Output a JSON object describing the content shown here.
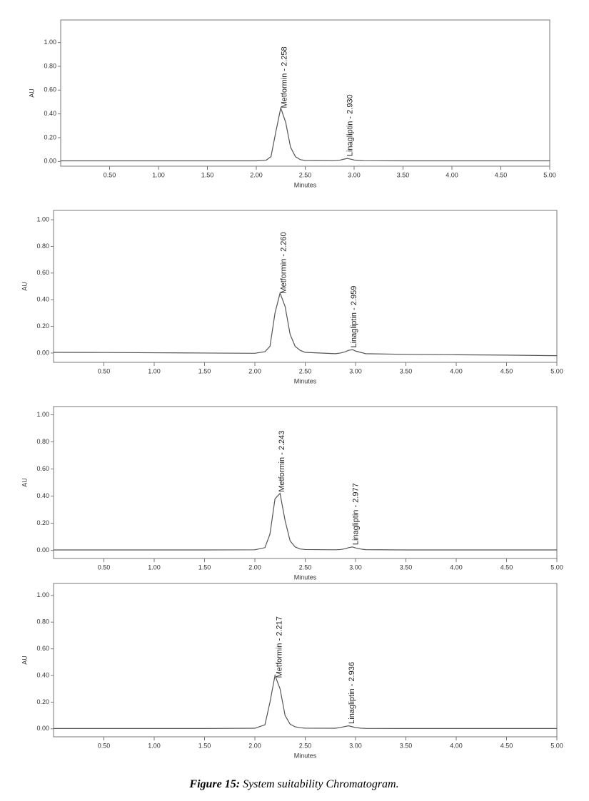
{
  "chart_data": [
    {
      "type": "line",
      "y_label": "AU",
      "x_label": "Minutes",
      "x": [
        0,
        0.5,
        1,
        1.5,
        2,
        2.1,
        2.15,
        2.2,
        2.25,
        2.3,
        2.35,
        2.4,
        2.45,
        2.5,
        2.8,
        2.85,
        2.9,
        2.93,
        2.97,
        3.0,
        3.05,
        3.1,
        3.5,
        4,
        4.5,
        5
      ],
      "series": [
        {
          "color": "#555555",
          "values": [
            0.005,
            0.005,
            0.005,
            0.005,
            0.005,
            0.01,
            0.04,
            0.25,
            0.45,
            0.33,
            0.12,
            0.04,
            0.015,
            0.008,
            0.006,
            0.01,
            0.02,
            0.025,
            0.018,
            0.012,
            0.008,
            0.006,
            0.005,
            0.005,
            0.005,
            0.005
          ]
        }
      ],
      "xlim": [
        0,
        5
      ],
      "ylim": [
        -0.04,
        1.19
      ],
      "xticks": [
        {
          "value": 0.5,
          "label": "0.50"
        },
        {
          "value": 1,
          "label": "1.00"
        },
        {
          "value": 1.5,
          "label": "1.50"
        },
        {
          "value": 2,
          "label": "2.00"
        },
        {
          "value": 2.5,
          "label": "2.50"
        },
        {
          "value": 3,
          "label": "3.00"
        },
        {
          "value": 3.5,
          "label": "3.50"
        },
        {
          "value": 4,
          "label": "4.00"
        },
        {
          "value": 4.5,
          "label": "4.50"
        },
        {
          "value": 5,
          "label": "5.00"
        }
      ],
      "yticks": [
        {
          "value": 0,
          "label": "0.00"
        },
        {
          "value": 0.2,
          "label": "0.20"
        },
        {
          "value": 0.4,
          "label": "0.40"
        },
        {
          "value": 0.6,
          "label": "0.60"
        },
        {
          "value": 0.8,
          "label": "0.80"
        },
        {
          "value": 1,
          "label": "1.00"
        }
      ],
      "annotations": [
        {
          "text": "Metformin - 2.258",
          "x": 2.258
        },
        {
          "text": "Linagliptin - 2.930",
          "x": 2.93
        }
      ]
    },
    {
      "type": "line",
      "y_label": "AU",
      "x_label": "Minutes",
      "x": [
        0,
        0.5,
        1,
        1.5,
        2,
        2.1,
        2.15,
        2.2,
        2.25,
        2.3,
        2.35,
        2.4,
        2.45,
        2.5,
        2.8,
        2.85,
        2.9,
        2.93,
        2.97,
        3.0,
        3.05,
        3.1,
        3.5,
        4,
        4.5,
        5
      ],
      "series": [
        {
          "color": "#555555",
          "values": [
            0.005,
            0.004,
            0.002,
            0,
            -0.002,
            0.01,
            0.05,
            0.3,
            0.45,
            0.35,
            0.14,
            0.05,
            0.02,
            0.005,
            -0.005,
            0.0,
            0.01,
            0.02,
            0.025,
            0.015,
            0.005,
            -0.005,
            -0.01,
            -0.013,
            -0.016,
            -0.02
          ]
        }
      ],
      "xlim": [
        0,
        5
      ],
      "ylim": [
        -0.07,
        1.07
      ],
      "xticks": [
        {
          "value": 0.5,
          "label": "0.50"
        },
        {
          "value": 1,
          "label": "1.00"
        },
        {
          "value": 1.5,
          "label": "1.50"
        },
        {
          "value": 2,
          "label": "2.00"
        },
        {
          "value": 2.5,
          "label": "2.50"
        },
        {
          "value": 3,
          "label": "3.00"
        },
        {
          "value": 3.5,
          "label": "3.50"
        },
        {
          "value": 4,
          "label": "4.00"
        },
        {
          "value": 4.5,
          "label": "4.50"
        },
        {
          "value": 5,
          "label": "5.00"
        }
      ],
      "yticks": [
        {
          "value": 0,
          "label": "0.00"
        },
        {
          "value": 0.2,
          "label": "0.20"
        },
        {
          "value": 0.4,
          "label": "0.40"
        },
        {
          "value": 0.6,
          "label": "0.60"
        },
        {
          "value": 0.8,
          "label": "0.80"
        },
        {
          "value": 1,
          "label": "1.00"
        }
      ],
      "annotations": [
        {
          "text": "Metformin - 2.260",
          "x": 2.26
        },
        {
          "text": "Linagliptin - 2.959",
          "x": 2.959
        }
      ]
    },
    {
      "type": "line",
      "y_label": "AU",
      "x_label": "Minutes",
      "x": [
        0,
        0.5,
        1,
        1.5,
        2,
        2.1,
        2.15,
        2.2,
        2.25,
        2.3,
        2.35,
        2.4,
        2.45,
        2.5,
        2.8,
        2.85,
        2.9,
        2.93,
        2.97,
        3.0,
        3.05,
        3.1,
        3.5,
        4,
        4.5,
        5
      ],
      "series": [
        {
          "color": "#555555",
          "values": [
            0.003,
            0.003,
            0.003,
            0.003,
            0.004,
            0.02,
            0.12,
            0.38,
            0.42,
            0.22,
            0.07,
            0.025,
            0.01,
            0.006,
            0.004,
            0.006,
            0.012,
            0.02,
            0.025,
            0.018,
            0.01,
            0.005,
            0.003,
            0.003,
            0.003,
            0.003
          ]
        }
      ],
      "xlim": [
        0,
        5
      ],
      "ylim": [
        -0.06,
        1.06
      ],
      "xticks": [
        {
          "value": 0.5,
          "label": "0.50"
        },
        {
          "value": 1,
          "label": "1.00"
        },
        {
          "value": 1.5,
          "label": "1.50"
        },
        {
          "value": 2,
          "label": "2.00"
        },
        {
          "value": 2.5,
          "label": "2.50"
        },
        {
          "value": 3,
          "label": "3.00"
        },
        {
          "value": 3.5,
          "label": "3.50"
        },
        {
          "value": 4,
          "label": "4.00"
        },
        {
          "value": 4.5,
          "label": "4.50"
        },
        {
          "value": 5,
          "label": "5.00"
        }
      ],
      "yticks": [
        {
          "value": 0,
          "label": "0.00"
        },
        {
          "value": 0.2,
          "label": "0.20"
        },
        {
          "value": 0.4,
          "label": "0.40"
        },
        {
          "value": 0.6,
          "label": "0.60"
        },
        {
          "value": 0.8,
          "label": "0.80"
        },
        {
          "value": 1,
          "label": "1.00"
        }
      ],
      "annotations": [
        {
          "text": "Metformin - 2.243",
          "x": 2.243
        },
        {
          "text": "Linagliptin - 2.977",
          "x": 2.977
        }
      ]
    },
    {
      "type": "line",
      "y_label": "AU",
      "x_label": "Minutes",
      "x": [
        0,
        0.5,
        1,
        1.5,
        2,
        2.1,
        2.15,
        2.2,
        2.25,
        2.3,
        2.35,
        2.4,
        2.45,
        2.5,
        2.8,
        2.85,
        2.9,
        2.93,
        2.97,
        3.0,
        3.05,
        3.1,
        3.5,
        4,
        4.5,
        5
      ],
      "series": [
        {
          "color": "#555555",
          "values": [
            0.002,
            0.002,
            0.002,
            0.002,
            0.004,
            0.03,
            0.2,
            0.4,
            0.3,
            0.1,
            0.035,
            0.015,
            0.008,
            0.005,
            0.004,
            0.01,
            0.018,
            0.022,
            0.015,
            0.01,
            0.005,
            0.003,
            0.002,
            0.002,
            0.002,
            0.002
          ]
        }
      ],
      "xlim": [
        0,
        5
      ],
      "ylim": [
        -0.06,
        1.09
      ],
      "xticks": [
        {
          "value": 0.5,
          "label": "0.50"
        },
        {
          "value": 1,
          "label": "1.00"
        },
        {
          "value": 1.5,
          "label": "1.50"
        },
        {
          "value": 2,
          "label": "2.00"
        },
        {
          "value": 2.5,
          "label": "2.50"
        },
        {
          "value": 3,
          "label": "3.00"
        },
        {
          "value": 3.5,
          "label": "3.50"
        },
        {
          "value": 4,
          "label": "4.00"
        },
        {
          "value": 4.5,
          "label": "4.50"
        },
        {
          "value": 5,
          "label": "5.00"
        }
      ],
      "yticks": [
        {
          "value": 0,
          "label": "0.00"
        },
        {
          "value": 0.2,
          "label": "0.20"
        },
        {
          "value": 0.4,
          "label": "0.40"
        },
        {
          "value": 0.6,
          "label": "0.60"
        },
        {
          "value": 0.8,
          "label": "0.80"
        },
        {
          "value": 1,
          "label": "1.00"
        }
      ],
      "annotations": [
        {
          "text": "Metformin - 2.217",
          "x": 2.217
        },
        {
          "text": "Linagliptin - 2.936",
          "x": 2.936
        }
      ]
    }
  ],
  "caption": {
    "label": "Figure 15:",
    "text": "System suitability Chromatogram."
  }
}
